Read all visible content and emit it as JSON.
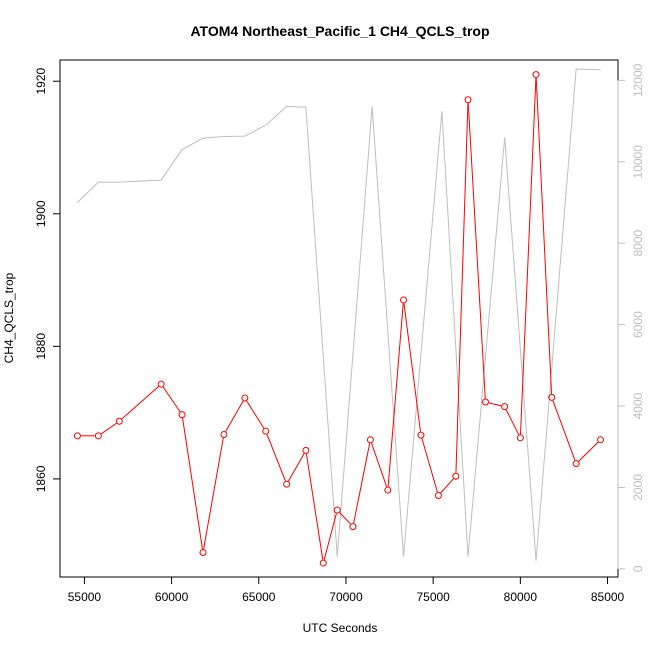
{
  "chart_data": {
    "type": "line",
    "title": "ATOM4 Northeast_Pacific_1 CH4_QCLS_trop",
    "xlabel": "UTC Seconds",
    "ylabel": "CH4_QCLS_trop",
    "xlim": [
      53600,
      85600
    ],
    "ylim": [
      1845.2,
      1923.2
    ],
    "y2lim": [
      -200,
      12500
    ],
    "x_ticks": [
      55000,
      60000,
      65000,
      70000,
      75000,
      80000,
      85000
    ],
    "x_tick_labels": [
      "55000",
      "60000",
      "65000",
      "70000",
      "75000",
      "80000",
      "85000"
    ],
    "y_ticks": [
      1860,
      1880,
      1900,
      1920
    ],
    "y_tick_labels": [
      "1860",
      "1880",
      "1900",
      "1920"
    ],
    "y2_ticks": [
      0,
      2000,
      4000,
      6000,
      8000,
      10000,
      12000
    ],
    "y2_tick_labels": [
      "0",
      "2000",
      "4000",
      "6000",
      "8000",
      "10000",
      "12000"
    ],
    "grid": false,
    "colors": {
      "primary": "#ff0000",
      "secondary": "#bebebe",
      "axis": "#000000"
    },
    "series": [
      {
        "axis": "left",
        "marker": "open-circle",
        "x": [
          54600,
          55800,
          57000,
          59400,
          60600,
          61800,
          63000,
          64200,
          65400,
          66600,
          67700,
          68700,
          69500,
          70400,
          71400,
          72400,
          73300,
          74300,
          75300,
          76300,
          77000,
          78000,
          79100,
          80000,
          80900,
          81800,
          83200,
          84600
        ],
        "values": [
          1866.5,
          1866.5,
          1868.7,
          1874.3,
          1869.7,
          1848.9,
          1866.7,
          1872.2,
          1867.2,
          1859.2,
          1864.3,
          1847.3,
          1855.3,
          1852.8,
          1865.9,
          1858.3,
          1887.0,
          1866.6,
          1857.5,
          1860.4,
          1917.2,
          1871.6,
          1870.9,
          1866.2,
          1921.0,
          1872.3,
          1862.3,
          1865.9
        ]
      },
      {
        "axis": "right",
        "marker": "none",
        "x": [
          54600,
          55800,
          57000,
          59400,
          60600,
          61800,
          63000,
          64200,
          65400,
          66600,
          67700,
          69500,
          71500,
          73300,
          75500,
          77000,
          79100,
          80900,
          83200,
          84600
        ],
        "values": [
          9000,
          9500,
          9500,
          9550,
          10300,
          10580,
          10620,
          10630,
          10900,
          11360,
          11340,
          300,
          11360,
          300,
          11240,
          300,
          10600,
          200,
          12280,
          12260
        ]
      }
    ]
  }
}
